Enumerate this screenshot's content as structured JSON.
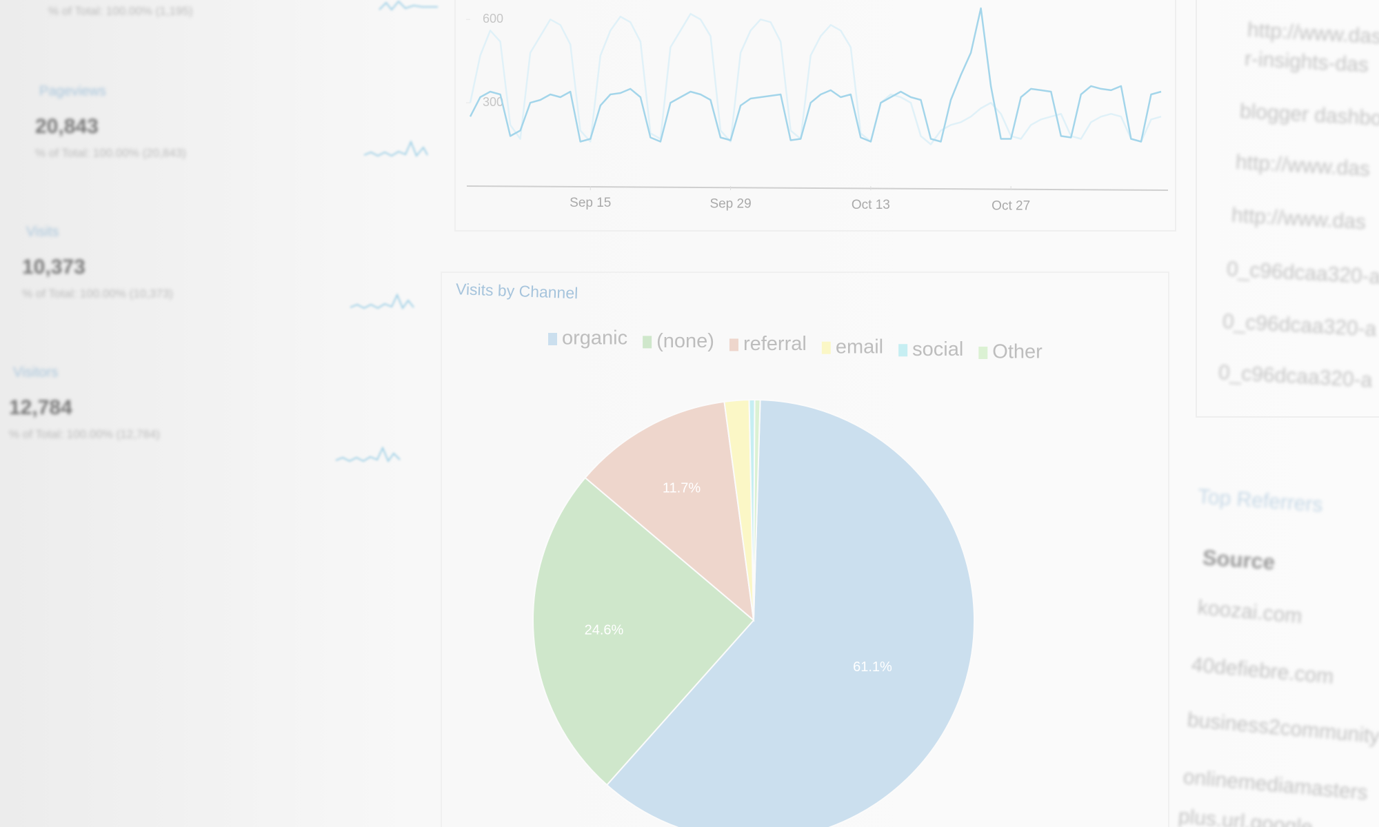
{
  "sidebar": {
    "metrics": [
      {
        "total": "% of Total: 100.00% (1,195)"
      },
      {
        "label": "Pageviews",
        "value": "20,843",
        "total": "% of Total: 100.00% (20,843)"
      },
      {
        "label": "Visits",
        "value": "10,373",
        "total": "% of Total: 100.00% (10,373)"
      },
      {
        "label": "Visitors",
        "value": "12,784",
        "total": "% of Total: 100.00% (12,784)"
      }
    ]
  },
  "chart_data": [
    {
      "type": "line",
      "categories": [
        null,
        null,
        null,
        null,
        null,
        null,
        null,
        null,
        null,
        null,
        null,
        null,
        "Sep 15",
        null,
        null,
        null,
        null,
        null,
        null,
        null,
        null,
        null,
        null,
        null,
        null,
        null,
        "Sep 29",
        null,
        null,
        null,
        null,
        null,
        null,
        null,
        null,
        null,
        null,
        null,
        null,
        null,
        "Oct 13",
        null,
        null,
        null,
        null,
        null,
        null,
        null,
        null,
        null,
        null,
        null,
        null,
        null,
        "Oct 27",
        null,
        null,
        null,
        null,
        null,
        null,
        null,
        null,
        null,
        null,
        null,
        null,
        null,
        null,
        null
      ],
      "series": [
        {
          "color": "#e0f1f8",
          "values": [
            300,
            470,
            560,
            520,
            220,
            170,
            480,
            540,
            600,
            580,
            510,
            200,
            160,
            470,
            560,
            610,
            590,
            520,
            190,
            170,
            500,
            560,
            620,
            600,
            540,
            200,
            160,
            480,
            560,
            600,
            590,
            520,
            200,
            170,
            470,
            540,
            580,
            560,
            500,
            190,
            160,
            300,
            330,
            320,
            300,
            180,
            150,
            200,
            220,
            230,
            250,
            280,
            300,
            260,
            180,
            170,
            220,
            240,
            250,
            260,
            180,
            170,
            230,
            250,
            260,
            250,
            170,
            160,
            240,
            250
          ]
        },
        {
          "color": "#a3d5ea",
          "values": [
            250,
            320,
            340,
            330,
            180,
            200,
            300,
            310,
            330,
            320,
            340,
            160,
            170,
            290,
            330,
            335,
            350,
            320,
            175,
            160,
            300,
            320,
            340,
            330,
            310,
            175,
            165,
            290,
            315,
            320,
            325,
            330,
            165,
            170,
            300,
            330,
            345,
            320,
            330,
            175,
            160,
            300,
            320,
            340,
            320,
            310,
            170,
            160,
            310,
            400,
            480,
            640,
            360,
            170,
            170,
            320,
            350,
            345,
            340,
            180,
            175,
            330,
            360,
            350,
            345,
            360,
            170,
            160,
            330,
            340
          ]
        }
      ],
      "ylim": [
        0,
        650
      ],
      "yticks": [
        300,
        600
      ]
    },
    {
      "type": "pie",
      "title": "Visits by Channel",
      "categories": [
        "organic",
        "(none)",
        "referral",
        "email",
        "social",
        "Other"
      ],
      "values": [
        61.1,
        24.6,
        11.7,
        1.8,
        0.4,
        0.4
      ],
      "value_labels": [
        "61.1%",
        "24.6%",
        "11.7%",
        null,
        null,
        null
      ],
      "colors": [
        "#cbdfee",
        "#cfe7cb",
        "#eed6cc",
        "#fbf7c6",
        "#c6eef2",
        "#dbf1d3"
      ]
    }
  ],
  "right_panel": {
    "urls": [
      "http://www.das",
      "r-insights-das",
      "blogger dashbo",
      "http://www.das",
      "http://www.das",
      "0_c96dcaa320-a",
      "0_c96dcaa320-a",
      "0_c96dcaa320-a"
    ],
    "top_referrers": {
      "title": "Top Referrers",
      "header": "Source",
      "rows": [
        "koozai.com",
        "40defiebre.com",
        "business2community",
        "onlinemediamasters",
        "plus.url.google"
      ]
    }
  }
}
